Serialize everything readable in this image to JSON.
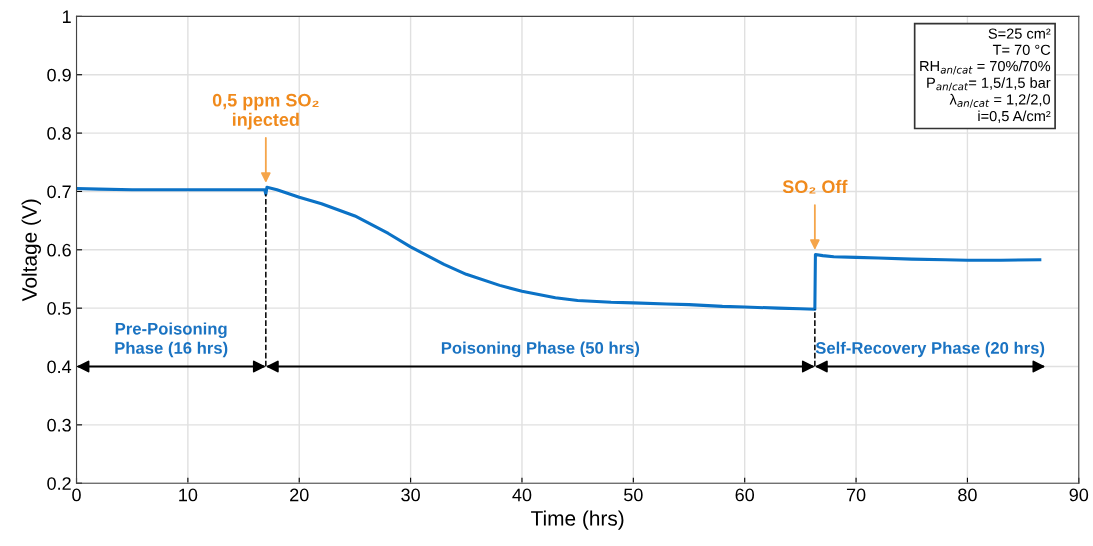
{
  "chart_data": {
    "type": "line",
    "xlabel": "Time (hrs)",
    "ylabel": "Voltage (V)",
    "xlim": [
      0,
      90
    ],
    "xticks": [
      0,
      10,
      20,
      30,
      40,
      50,
      60,
      70,
      80,
      90
    ],
    "ylim": [
      0.2,
      1
    ],
    "yticks": [
      0.2,
      0.3,
      0.4,
      0.5,
      0.6,
      0.7,
      0.8,
      0.9,
      1
    ],
    "grid": true,
    "legend": false,
    "marker": "none",
    "line_style": "solid",
    "series": [
      {
        "color": "#0b72c6",
        "x": [
          0,
          2,
          5,
          10,
          15,
          16.9,
          17.0,
          17.1,
          18,
          20,
          22,
          25,
          28,
          30,
          33,
          35,
          38,
          40,
          43,
          45,
          48,
          50,
          53,
          55,
          58,
          60,
          63,
          65,
          66.3,
          66.35,
          67,
          68,
          70,
          72,
          75,
          78,
          80,
          83,
          86.5
        ],
        "values": [
          0.705,
          0.704,
          0.703,
          0.703,
          0.703,
          0.703,
          0.695,
          0.707,
          0.703,
          0.69,
          0.679,
          0.658,
          0.628,
          0.605,
          0.575,
          0.558,
          0.539,
          0.529,
          0.518,
          0.513,
          0.51,
          0.509,
          0.507,
          0.506,
          0.503,
          0.502,
          0.5,
          0.499,
          0.498,
          0.592,
          0.59,
          0.588,
          0.587,
          0.586,
          0.584,
          0.583,
          0.582,
          0.582,
          0.583
        ]
      }
    ],
    "ref_lines": [
      {
        "axis": "x",
        "value": 17,
        "color": "#000000",
        "line_style": "dashed"
      },
      {
        "axis": "x",
        "value": 66.3,
        "color": "#000000",
        "line_style": "dashed"
      }
    ],
    "annotations": [
      "Pre-Poisoning\nPhase (16 hrs)",
      "Poisoning Phase (50 hrs)",
      "Self-Recovery Phase (20 hrs)",
      {
        "text": "0,5 ppm SO₂\ninjected",
        "x": 17,
        "y": 0.71
      },
      {
        "text": "SO₂ Off",
        "x": 66.3,
        "y": 0.595
      },
      "S=25 cm²\nT= 70 °C\nRH$_{an/cat}$ = 70%/70%\nP$_{an/cat}$= 1,5/1,5 bar\nλ$_{an/cat}$ = 1,2/2,0\ni=0,5 A/cm²"
    ]
  }
}
